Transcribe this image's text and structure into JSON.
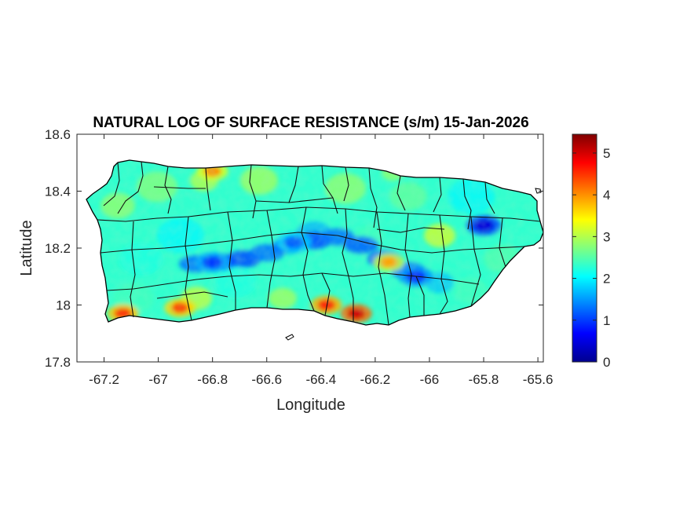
{
  "chart_data": {
    "type": "heatmap",
    "title": "NATURAL LOG OF SURFACE RESISTANCE (s/m) 15-Jan-2026",
    "xlabel": "Longitude",
    "ylabel": "Latitude",
    "xlim": [
      -67.3,
      -65.58
    ],
    "ylim": [
      17.8,
      18.6
    ],
    "xticks": [
      -67.2,
      -67,
      -66.8,
      -66.6,
      -66.4,
      -66.2,
      -66,
      -65.8,
      -65.6
    ],
    "xtick_labels": [
      "-67.2",
      "-67",
      "-66.8",
      "-66.6",
      "-66.4",
      "-66.2",
      "-66",
      "-65.8",
      "-65.6"
    ],
    "yticks": [
      17.8,
      18,
      18.2,
      18.4,
      18.6
    ],
    "ytick_labels": [
      "17.8",
      "18",
      "18.2",
      "18.4",
      "18.6"
    ],
    "colorbar": {
      "colormap": "jet",
      "clim": [
        0,
        5.45
      ],
      "ticks": [
        0,
        1,
        2,
        3,
        4,
        5
      ],
      "tick_labels": [
        "0",
        "1",
        "2",
        "3",
        "4",
        "5"
      ]
    },
    "field_summary": {
      "background_level": 2.3,
      "low_zones": [
        {
          "lon": -65.8,
          "lat": 18.28,
          "value": 0.5
        },
        {
          "lon": -66.05,
          "lat": 18.1,
          "value": 0.9
        },
        {
          "lon": -66.8,
          "lat": 18.15,
          "value": 1.0
        },
        {
          "lon": -66.5,
          "lat": 18.22,
          "value": 1.2
        }
      ],
      "high_zones": [
        {
          "lon": -66.27,
          "lat": 17.97,
          "value": 5.0
        },
        {
          "lon": -66.38,
          "lat": 18.0,
          "value": 4.6
        },
        {
          "lon": -66.92,
          "lat": 17.99,
          "value": 4.4
        },
        {
          "lon": -67.13,
          "lat": 17.97,
          "value": 4.5
        },
        {
          "lon": -66.8,
          "lat": 18.47,
          "value": 4.0
        },
        {
          "lon": -66.15,
          "lat": 18.15,
          "value": 3.9
        }
      ]
    }
  }
}
